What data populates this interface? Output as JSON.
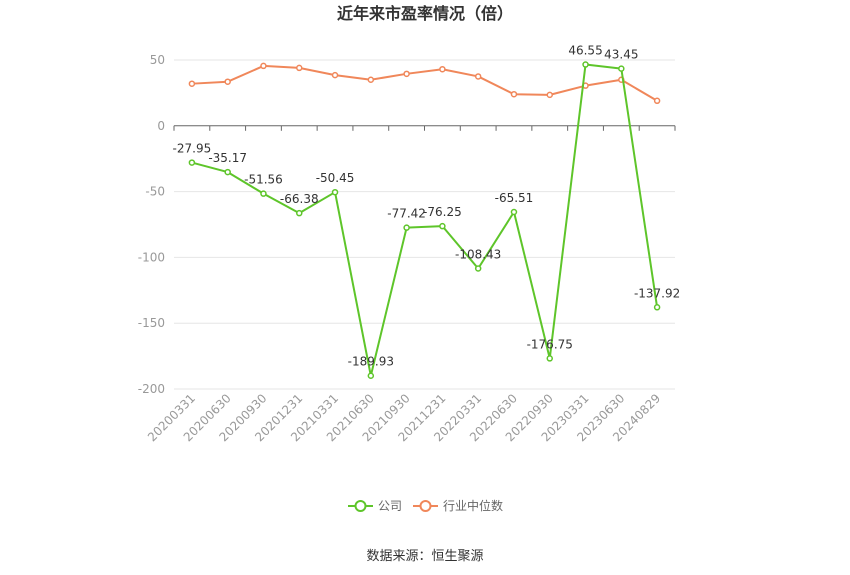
{
  "chart_data": {
    "type": "line",
    "title": "近年来市盈率情况（倍）",
    "categories": [
      "20200331",
      "20200630",
      "20200930",
      "20201231",
      "20210331",
      "20210630",
      "20210930",
      "20211231",
      "20220331",
      "20220630",
      "20220930",
      "20230331",
      "20230630",
      "20240829"
    ],
    "series": [
      {
        "name": "公司",
        "color": "#5ec52a",
        "values": [
          -27.95,
          -35.17,
          -51.56,
          -66.38,
          -50.45,
          -189.93,
          -77.42,
          -76.25,
          -108.43,
          -65.51,
          -176.75,
          46.55,
          43.45,
          -137.92
        ],
        "labels": [
          "-27.95",
          "-35.17",
          "-51.56",
          "-66.38",
          "-50.45",
          "-189.93",
          "-77.42",
          "-76.25",
          "-108.43",
          "-65.51",
          "-176.75",
          "46.55",
          "43.45",
          "-137.92"
        ]
      },
      {
        "name": "行业中位数",
        "color": "#f0875a",
        "values": [
          32,
          33.5,
          45.5,
          44,
          38.5,
          35,
          39.5,
          43,
          37.5,
          24,
          23.5,
          30.5,
          35,
          19
        ]
      }
    ],
    "yaxis": {
      "min": -200,
      "max": 50,
      "ticks": [
        "50",
        "0",
        "-50",
        "-100",
        "-150",
        "-200"
      ],
      "tick_values": [
        50,
        0,
        -50,
        -100,
        -150,
        -200
      ]
    },
    "grid": true,
    "legend_position": "bottom-center"
  },
  "source": "数据来源：恒生聚源"
}
